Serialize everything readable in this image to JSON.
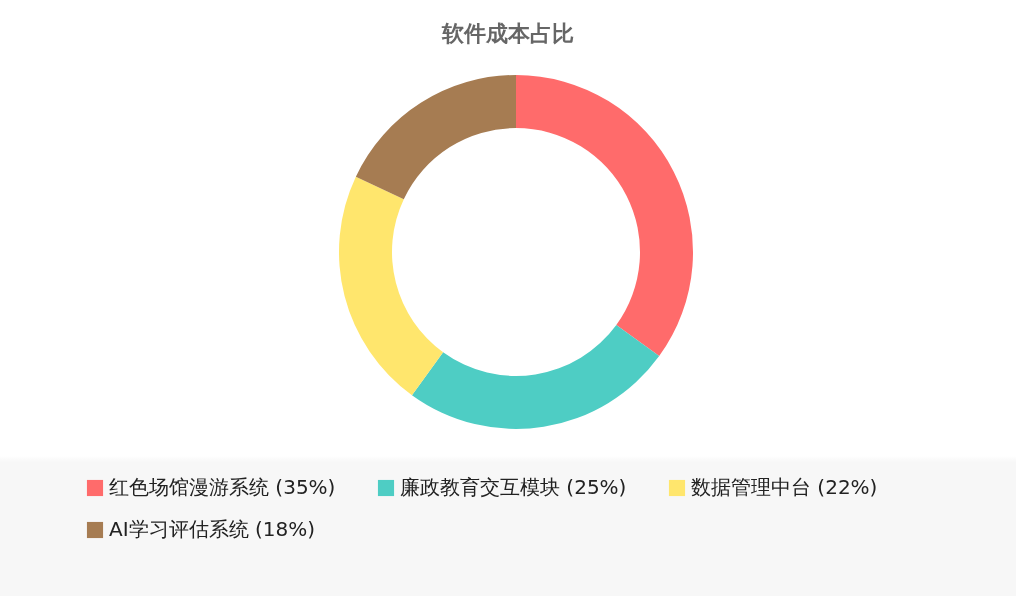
{
  "chart_data": {
    "type": "donut",
    "title": "软件成本占比",
    "categories": [
      "红色场馆漫游系统 (35%)",
      "廉政教育交互模块 (25%)",
      "数据管理中台 (22%)",
      "AI学习评估系统 (18%)"
    ],
    "values": [
      35,
      25,
      22,
      18
    ],
    "colors": [
      "#ff6b6b",
      "#4ecdc4",
      "#ffe66d",
      "#a67c52"
    ],
    "legend": "bottom"
  }
}
